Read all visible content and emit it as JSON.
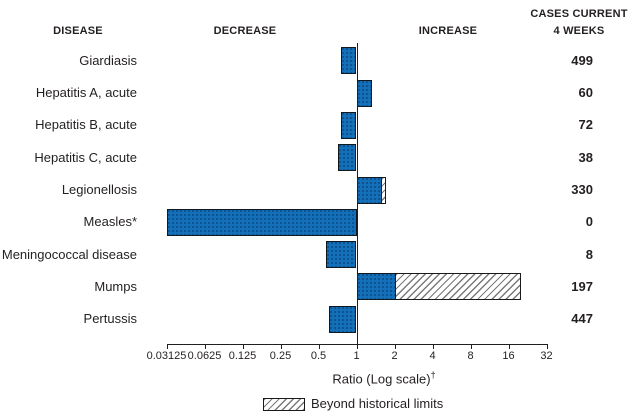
{
  "headers": {
    "disease": "DISEASE",
    "decrease": "DECREASE",
    "increase": "INCREASE",
    "cases_line1": "CASES CURRENT",
    "cases_line2": "4 WEEKS"
  },
  "chart_data": {
    "type": "bar",
    "orientation": "horizontal",
    "x_scale": "log2",
    "xlabel": "Ratio (Log scale)",
    "xlabel_dagger": "†",
    "xlim": [
      0.03125,
      32
    ],
    "baseline": 1,
    "x_ticks": [
      0.03125,
      0.0625,
      0.125,
      0.25,
      0.5,
      1,
      2,
      4,
      8,
      16,
      32
    ],
    "x_tick_labels": [
      "0.03125",
      "0.0625",
      "0.125",
      "0.25",
      "0.5",
      "1",
      "2",
      "4",
      "8",
      "16",
      "32"
    ],
    "legend_label": "Beyond historical limits",
    "legend_swatch": "diagonal-hatch",
    "bar_color": "#1470b8",
    "grid": false,
    "rows": [
      {
        "disease": "Giardiasis",
        "cases_current_4_weeks": 499,
        "ratio": 0.76,
        "beyond_historical_limits": false
      },
      {
        "disease": "Hepatitis A, acute",
        "cases_current_4_weeks": 60,
        "ratio": 1.32,
        "beyond_historical_limits": false
      },
      {
        "disease": "Hepatitis B, acute",
        "cases_current_4_weeks": 72,
        "ratio": 0.76,
        "beyond_historical_limits": false
      },
      {
        "disease": "Hepatitis C, acute",
        "cases_current_4_weeks": 38,
        "ratio": 0.72,
        "beyond_historical_limits": false
      },
      {
        "disease": "Legionellosis",
        "cases_current_4_weeks": 330,
        "ratio": 1.7,
        "historical_limit_ratio": 1.6,
        "beyond_historical_limits": true
      },
      {
        "disease": "Measles*",
        "cases_current_4_weeks": 0,
        "ratio": 0,
        "clipped_to_axis_min": true,
        "beyond_historical_limits": false
      },
      {
        "disease": "Meningococcal disease",
        "cases_current_4_weeks": 8,
        "ratio": 0.57,
        "beyond_historical_limits": false
      },
      {
        "disease": "Mumps",
        "cases_current_4_weeks": 197,
        "ratio": 20,
        "historical_limit_ratio": 2.05,
        "beyond_historical_limits": true
      },
      {
        "disease": "Pertussis",
        "cases_current_4_weeks": 447,
        "ratio": 0.61,
        "beyond_historical_limits": false
      }
    ]
  }
}
